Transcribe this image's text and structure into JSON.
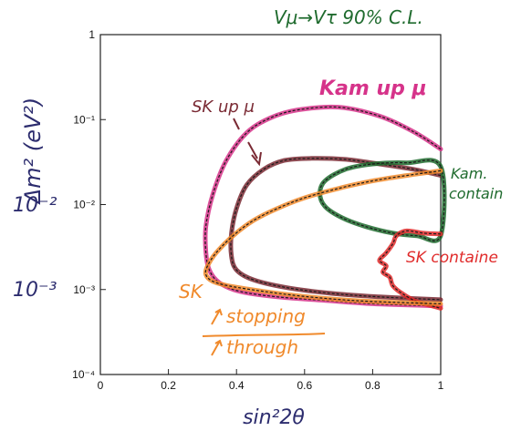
{
  "chart_data": {
    "type": "line",
    "title": "Vμ→Vτ    90% C.L.",
    "xlabel": "sin²2θ",
    "ylabel": "Δm² (eV²)",
    "xlim": [
      0,
      1
    ],
    "ylim": [
      0.0001,
      1
    ],
    "y_scale": "log",
    "x_ticks": [
      "0",
      "0.2",
      "0.4",
      "0.6",
      "0.8",
      "1"
    ],
    "y_ticks": [
      "10⁻⁴",
      "10⁻³",
      "10⁻²",
      "10⁻¹",
      "1"
    ],
    "y_hand_labels": [
      "10⁻²",
      "10⁻³"
    ],
    "grid": false,
    "series": [
      {
        "name": "Kam up μ",
        "color": "#d6338a",
        "closed": false,
        "points": [
          [
            1.0,
            0.045
          ],
          [
            0.92,
            0.072
          ],
          [
            0.82,
            0.11
          ],
          [
            0.7,
            0.14
          ],
          [
            0.58,
            0.13
          ],
          [
            0.5,
            0.105
          ],
          [
            0.43,
            0.07
          ],
          [
            0.37,
            0.033
          ],
          [
            0.33,
            0.013
          ],
          [
            0.31,
            0.0055
          ],
          [
            0.31,
            0.0028
          ],
          [
            0.32,
            0.0017
          ],
          [
            0.35,
            0.0012
          ],
          [
            0.41,
            0.00095
          ],
          [
            0.52,
            0.00082
          ],
          [
            0.65,
            0.00075
          ],
          [
            0.8,
            0.00068
          ],
          [
            1.0,
            0.00064
          ]
        ]
      },
      {
        "name": "SK up μ",
        "color": "#7a2a34",
        "closed": false,
        "points": [
          [
            1.0,
            0.022
          ],
          [
            0.92,
            0.026
          ],
          [
            0.82,
            0.03
          ],
          [
            0.72,
            0.034
          ],
          [
            0.62,
            0.035
          ],
          [
            0.54,
            0.033
          ],
          [
            0.48,
            0.026
          ],
          [
            0.43,
            0.017
          ],
          [
            0.4,
            0.009
          ],
          [
            0.385,
            0.0045
          ],
          [
            0.385,
            0.0025
          ],
          [
            0.4,
            0.0017
          ],
          [
            0.45,
            0.0013
          ],
          [
            0.55,
            0.00105
          ],
          [
            0.68,
            0.0009
          ],
          [
            0.82,
            0.00082
          ],
          [
            1.0,
            0.00076
          ]
        ]
      },
      {
        "name": "Kam. contain",
        "color": "#1f6b2e",
        "closed": true,
        "points": [
          [
            1.0,
            0.028
          ],
          [
            0.9,
            0.031
          ],
          [
            0.8,
            0.03
          ],
          [
            0.72,
            0.026
          ],
          [
            0.66,
            0.019
          ],
          [
            0.645,
            0.0135
          ],
          [
            0.66,
            0.0095
          ],
          [
            0.71,
            0.007
          ],
          [
            0.78,
            0.0055
          ],
          [
            0.86,
            0.0046
          ],
          [
            0.93,
            0.0043
          ],
          [
            1.0,
            0.0043
          ]
        ]
      },
      {
        "name": "SK containe",
        "color": "#e02b2b",
        "closed": false,
        "points": [
          [
            1.0,
            0.0045
          ],
          [
            0.95,
            0.0046
          ],
          [
            0.9,
            0.0049
          ],
          [
            0.87,
            0.0043
          ],
          [
            0.86,
            0.0035
          ],
          [
            0.84,
            0.0027
          ],
          [
            0.82,
            0.0022
          ],
          [
            0.84,
            0.0019
          ],
          [
            0.83,
            0.0016
          ],
          [
            0.85,
            0.0014
          ],
          [
            0.86,
            0.0011
          ],
          [
            0.89,
            0.00088
          ],
          [
            0.93,
            0.00072
          ],
          [
            0.97,
            0.00065
          ],
          [
            1.0,
            0.0006
          ]
        ]
      },
      {
        "name": "SK stopping/through",
        "color": "#f08a2c",
        "closed": false,
        "points": [
          [
            1.0,
            0.025
          ],
          [
            0.9,
            0.022
          ],
          [
            0.8,
            0.019
          ],
          [
            0.7,
            0.0155
          ],
          [
            0.6,
            0.012
          ],
          [
            0.52,
            0.009
          ],
          [
            0.45,
            0.0065
          ],
          [
            0.39,
            0.0043
          ],
          [
            0.34,
            0.0027
          ],
          [
            0.315,
            0.0019
          ],
          [
            0.31,
            0.0015
          ],
          [
            0.33,
            0.00125
          ],
          [
            0.38,
            0.0011
          ],
          [
            0.48,
            0.00095
          ],
          [
            0.6,
            0.00083
          ],
          [
            0.75,
            0.00074
          ],
          [
            0.9,
            0.0007
          ],
          [
            1.0,
            0.00068
          ]
        ]
      }
    ],
    "annotations": {
      "kam_up_mu": "Kam up μ",
      "sk_up_mu": "SK up μ",
      "kam_contain_1": "Kam.",
      "kam_contain_2": "contain",
      "sk_containe": "SK containe",
      "sk": "SK",
      "stopping": "stopping",
      "through": "through"
    }
  }
}
